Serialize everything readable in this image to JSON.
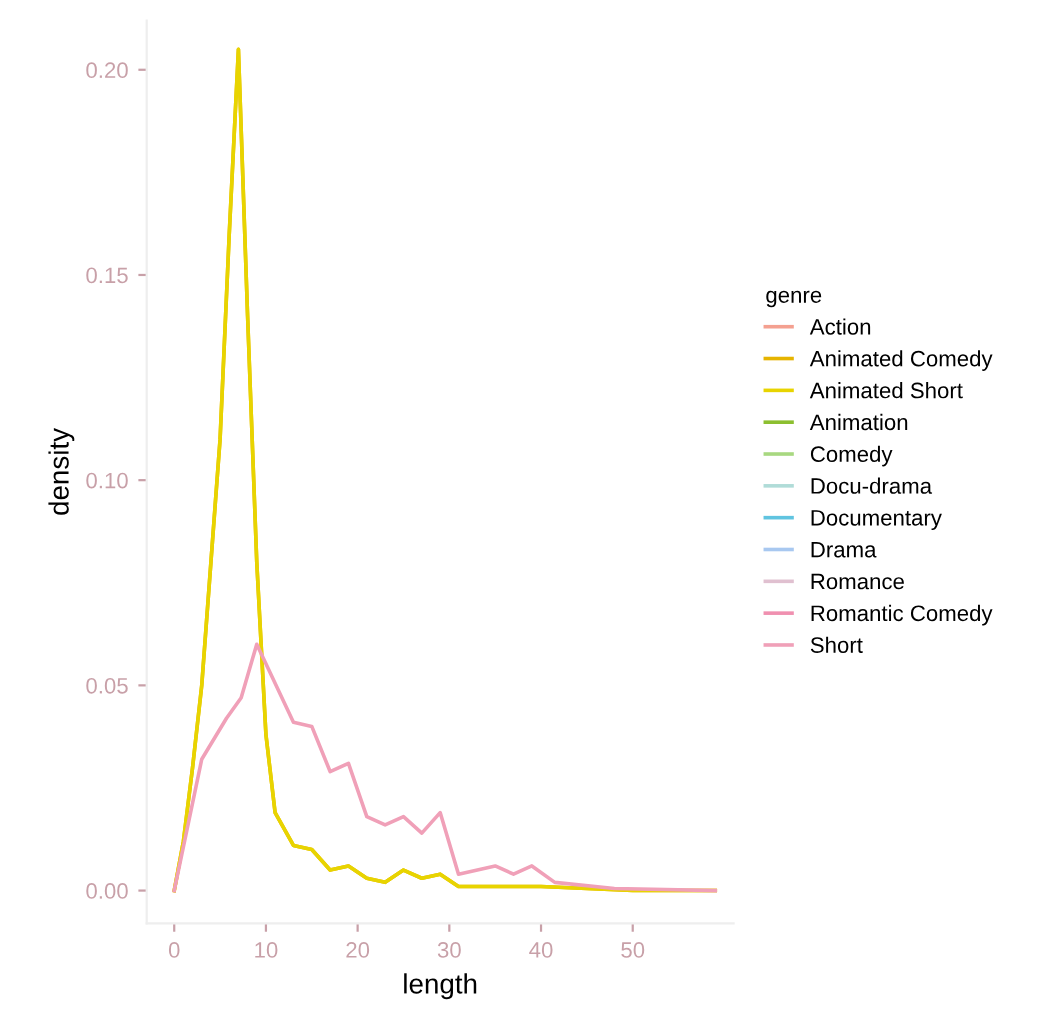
{
  "chart_data": {
    "type": "line",
    "xlabel": "length",
    "ylabel": "density",
    "legend_title": "genre",
    "legend": "right",
    "grid": false,
    "xlim": [
      -3,
      61
    ],
    "ylim": [
      -0.008,
      0.212
    ],
    "xticks": [
      0,
      10,
      20,
      30,
      40,
      50
    ],
    "yticks": [
      {
        "value": 0,
        "label": "0.00"
      },
      {
        "value": 0.05,
        "label": "0.05"
      },
      {
        "value": 0.1,
        "label": "0.10"
      },
      {
        "value": 0.15,
        "label": "0.15"
      },
      {
        "value": 0.2,
        "label": "0.20"
      }
    ],
    "series": [
      {
        "name": "Action",
        "color": "#f4a090"
      },
      {
        "name": "Animated Comedy",
        "color": "#e6b400",
        "x": [
          0,
          1,
          2,
          3,
          4,
          5,
          6,
          7,
          8,
          9,
          10,
          11,
          13,
          15,
          17,
          19,
          21,
          23,
          25,
          27,
          29,
          31,
          35,
          40,
          45,
          50,
          55,
          59
        ],
        "values": [
          0,
          0.012,
          0.03,
          0.05,
          0.08,
          0.11,
          0.16,
          0.205,
          0.14,
          0.08,
          0.038,
          0.019,
          0.011,
          0.01,
          0.005,
          0.006,
          0.003,
          0.002,
          0.005,
          0.003,
          0.004,
          0.001,
          0.001,
          0.001,
          0.0005,
          0,
          0,
          0
        ]
      },
      {
        "name": "Animated Short",
        "color": "#e8d400",
        "x": [
          0,
          1,
          2,
          3,
          4,
          5,
          6,
          7,
          8,
          9,
          10,
          11,
          13,
          15,
          17,
          19,
          21,
          23,
          25,
          27,
          29,
          31,
          35,
          40,
          45,
          50,
          55,
          59
        ],
        "values": [
          0,
          0.012,
          0.03,
          0.05,
          0.08,
          0.11,
          0.16,
          0.205,
          0.14,
          0.08,
          0.038,
          0.019,
          0.011,
          0.01,
          0.005,
          0.006,
          0.003,
          0.002,
          0.005,
          0.003,
          0.004,
          0.001,
          0.001,
          0.001,
          0.0005,
          0,
          0,
          0
        ]
      },
      {
        "name": "Animation",
        "color": "#8cbf30"
      },
      {
        "name": "Comedy",
        "color": "#a8d880"
      },
      {
        "name": "Docu-drama",
        "color": "#b0dcd8"
      },
      {
        "name": "Documentary",
        "color": "#60c4e0"
      },
      {
        "name": "Drama",
        "color": "#a8c8f0"
      },
      {
        "name": "Romance",
        "color": "#e0c0d0"
      },
      {
        "name": "Romantic Comedy",
        "color": "#f090b0"
      },
      {
        "name": "Short",
        "color": "#f0a0b8",
        "x": [
          0,
          3,
          5.7,
          7.3,
          9,
          13,
          15,
          17,
          19,
          21,
          23,
          25,
          27,
          29,
          31,
          35,
          37,
          39,
          41.5,
          48,
          59
        ],
        "values": [
          0,
          0.032,
          0.042,
          0.047,
          0.06,
          0.041,
          0.04,
          0.029,
          0.031,
          0.018,
          0.016,
          0.018,
          0.014,
          0.019,
          0.004,
          0.006,
          0.004,
          0.006,
          0.002,
          0.0005,
          0
        ]
      }
    ]
  }
}
